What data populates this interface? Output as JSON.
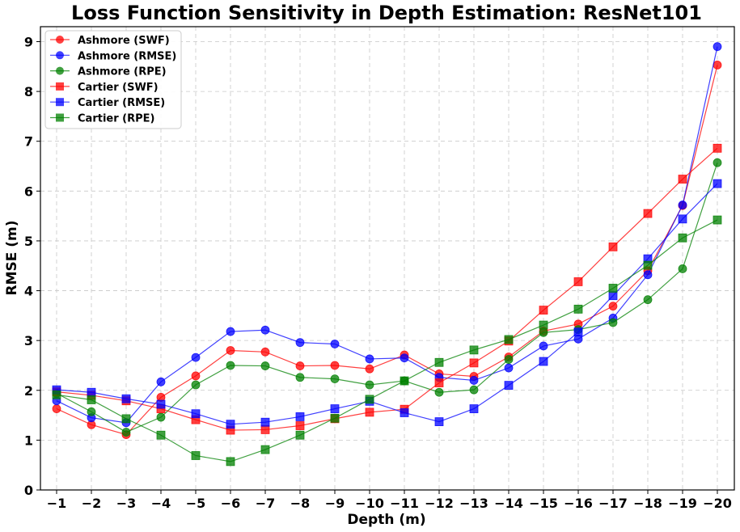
{
  "chart_data": {
    "type": "line",
    "title": "Loss Function Sensitivity in Depth Estimation: ResNet101",
    "xlabel": "Depth (m)",
    "ylabel": "RMSE (m)",
    "categories": [
      "−1",
      "−2",
      "−3",
      "−4",
      "−5",
      "−6",
      "−7",
      "−8",
      "−9",
      "−10",
      "−11",
      "−12",
      "−13",
      "−14",
      "−15",
      "−16",
      "−17",
      "−18",
      "−19",
      "−20"
    ],
    "ylim": [
      0,
      9.3
    ],
    "yticks": [
      "0",
      "1",
      "2",
      "3",
      "4",
      "5",
      "6",
      "7",
      "8",
      "9"
    ],
    "grid": true,
    "legend_position": "top-left",
    "series": [
      {
        "name": "Ashmore (SWF)",
        "color": "#ff0000",
        "marker": "circle",
        "values": [
          1.63,
          1.31,
          1.11,
          1.86,
          2.29,
          2.8,
          2.77,
          2.49,
          2.5,
          2.43,
          2.71,
          2.33,
          2.28,
          2.67,
          3.19,
          3.33,
          3.69,
          4.4,
          5.71,
          8.53
        ]
      },
      {
        "name": "Ashmore (RMSE)",
        "color": "#0000ff",
        "marker": "circle",
        "values": [
          1.79,
          1.45,
          1.35,
          2.17,
          2.66,
          3.18,
          3.21,
          2.96,
          2.93,
          2.63,
          2.65,
          2.26,
          2.2,
          2.45,
          2.89,
          3.03,
          3.45,
          4.32,
          5.72,
          8.9
        ]
      },
      {
        "name": "Ashmore (RPE)",
        "color": "#008000",
        "marker": "circle",
        "values": [
          1.94,
          1.57,
          1.16,
          1.46,
          2.11,
          2.5,
          2.49,
          2.26,
          2.23,
          2.11,
          2.19,
          1.96,
          2.01,
          2.62,
          3.16,
          3.22,
          3.36,
          3.82,
          4.44,
          6.57
        ]
      },
      {
        "name": "Cartier (SWF)",
        "color": "#ff0000",
        "marker": "square",
        "values": [
          1.97,
          1.9,
          1.79,
          1.63,
          1.41,
          1.2,
          1.21,
          1.29,
          1.43,
          1.56,
          1.62,
          2.15,
          2.55,
          2.99,
          3.61,
          4.18,
          4.88,
          5.55,
          6.24,
          6.86
        ]
      },
      {
        "name": "Cartier (RMSE)",
        "color": "#0000ff",
        "marker": "square",
        "values": [
          2.01,
          1.96,
          1.83,
          1.72,
          1.53,
          1.32,
          1.36,
          1.47,
          1.63,
          1.78,
          1.55,
          1.37,
          1.63,
          2.1,
          2.58,
          3.17,
          3.9,
          4.64,
          5.44,
          6.15
        ]
      },
      {
        "name": "Cartier (RPE)",
        "color": "#008000",
        "marker": "square",
        "values": [
          1.91,
          1.81,
          1.43,
          1.1,
          0.69,
          0.57,
          0.81,
          1.1,
          1.44,
          1.82,
          2.19,
          2.56,
          2.81,
          3.02,
          3.31,
          3.63,
          4.05,
          4.51,
          5.06,
          5.42
        ]
      }
    ]
  }
}
